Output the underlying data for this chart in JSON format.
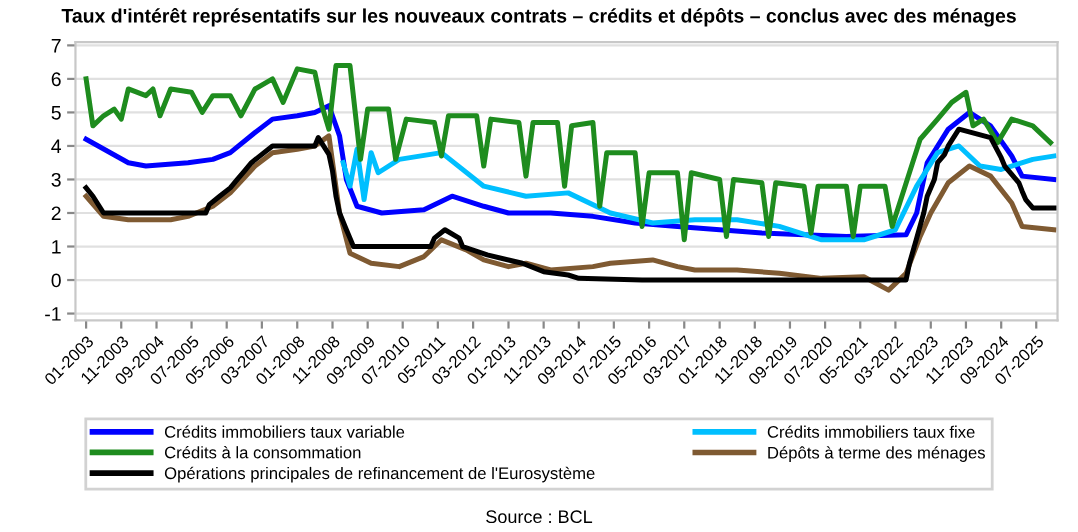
{
  "chart_data": {
    "type": "line",
    "title": "Taux d'intérêt représentatifs sur les nouveaux contrats – crédits et dépôts – conclus avec des ménages",
    "xlim": [
      "2002-10",
      "2026-01"
    ],
    "xticks": [
      {
        "value": "2003-01",
        "label": "01-2003"
      },
      {
        "value": "2003-11",
        "label": "11-2003"
      },
      {
        "value": "2004-09",
        "label": "09-2004"
      },
      {
        "value": "2005-07",
        "label": "07-2005"
      },
      {
        "value": "2006-05",
        "label": "05-2006"
      },
      {
        "value": "2007-03",
        "label": "03-2007"
      },
      {
        "value": "2008-01",
        "label": "01-2008"
      },
      {
        "value": "2008-11",
        "label": "11-2008"
      },
      {
        "value": "2009-09",
        "label": "09-2009"
      },
      {
        "value": "2010-07",
        "label": "07-2010"
      },
      {
        "value": "2011-05",
        "label": "05-2011"
      },
      {
        "value": "2012-03",
        "label": "03-2012"
      },
      {
        "value": "2013-01",
        "label": "01-2013"
      },
      {
        "value": "2013-11",
        "label": "11-2013"
      },
      {
        "value": "2014-09",
        "label": "09-2014"
      },
      {
        "value": "2015-07",
        "label": "07-2015"
      },
      {
        "value": "2016-05",
        "label": "05-2016"
      },
      {
        "value": "2017-03",
        "label": "03-2017"
      },
      {
        "value": "2018-01",
        "label": "01-2018"
      },
      {
        "value": "2018-11",
        "label": "11-2018"
      },
      {
        "value": "2019-09",
        "label": "09-2019"
      },
      {
        "value": "2020-07",
        "label": "07-2020"
      },
      {
        "value": "2021-05",
        "label": "05-2021"
      },
      {
        "value": "2022-03",
        "label": "03-2022"
      },
      {
        "value": "2023-01",
        "label": "01-2023"
      },
      {
        "value": "2023-11",
        "label": "11-2023"
      },
      {
        "value": "2024-09",
        "label": "09-2024"
      },
      {
        "value": "2025-07",
        "label": "07-2025"
      }
    ],
    "ylim": [
      -1.2,
      7.1
    ],
    "yticks": [
      -1,
      0,
      1,
      2,
      3,
      4,
      5,
      6,
      7
    ],
    "grid": "y",
    "legend": "bottom",
    "marker": "none",
    "line_style": "solid",
    "series": [
      {
        "name": "Crédits immobiliers taux variable",
        "color": "#0000ff",
        "x": [
          "2003-01",
          "2004-01",
          "2004-06",
          "2005-06",
          "2006-01",
          "2006-06",
          "2007-01",
          "2007-06",
          "2008-01",
          "2008-06",
          "2008-10",
          "2009-01",
          "2009-03",
          "2009-06",
          "2010-01",
          "2011-01",
          "2011-09",
          "2012-06",
          "2013-01",
          "2014-01",
          "2015-01",
          "2016-01",
          "2017-01",
          "2018-01",
          "2019-01",
          "2020-01",
          "2021-01",
          "2022-06",
          "2022-09",
          "2022-12",
          "2023-06",
          "2023-12",
          "2024-06",
          "2024-12",
          "2025-03",
          "2025-12"
        ],
        "values": [
          4.2,
          3.5,
          3.4,
          3.5,
          3.6,
          3.8,
          4.4,
          4.8,
          4.9,
          5.0,
          5.2,
          4.3,
          3.0,
          2.2,
          2.0,
          2.1,
          2.5,
          2.2,
          2.0,
          2.0,
          1.9,
          1.7,
          1.6,
          1.5,
          1.4,
          1.35,
          1.3,
          1.35,
          2.0,
          3.5,
          4.5,
          5.0,
          4.6,
          3.7,
          3.1,
          3.0
        ]
      },
      {
        "name": "Crédits immobiliers taux fixe",
        "color": "#00bfff",
        "x": [
          "2009-02",
          "2009-04",
          "2009-06",
          "2009-08",
          "2009-10",
          "2009-12",
          "2010-06",
          "2011-06",
          "2012-06",
          "2013-06",
          "2014-06",
          "2015-06",
          "2016-06",
          "2017-06",
          "2018-06",
          "2019-06",
          "2020-06",
          "2021-06",
          "2022-03",
          "2022-09",
          "2023-03",
          "2023-09",
          "2024-03",
          "2024-09",
          "2025-06",
          "2025-12"
        ],
        "values": [
          3.5,
          2.8,
          3.9,
          2.4,
          3.8,
          3.2,
          3.6,
          3.8,
          2.8,
          2.5,
          2.6,
          2.0,
          1.7,
          1.8,
          1.8,
          1.6,
          1.2,
          1.2,
          1.5,
          2.8,
          3.8,
          4.0,
          3.4,
          3.3,
          3.6,
          3.7
        ]
      },
      {
        "name": "Crédits à la consommation",
        "color": "#1e8c1e",
        "x": [
          "2003-01",
          "2003-03",
          "2003-06",
          "2003-09",
          "2003-11",
          "2004-01",
          "2004-06",
          "2004-08",
          "2004-10",
          "2005-01",
          "2005-07",
          "2005-10",
          "2006-01",
          "2006-06",
          "2006-09",
          "2007-01",
          "2007-06",
          "2007-09",
          "2008-01",
          "2008-06",
          "2008-08",
          "2008-10",
          "2008-12",
          "2009-04",
          "2009-07",
          "2009-09",
          "2010-03",
          "2010-05",
          "2010-08",
          "2011-04",
          "2011-06",
          "2011-08",
          "2012-04",
          "2012-06",
          "2012-08",
          "2013-04",
          "2013-06",
          "2013-08",
          "2014-03",
          "2014-05",
          "2014-07",
          "2015-01",
          "2015-03",
          "2015-05",
          "2016-01",
          "2016-03",
          "2016-05",
          "2017-01",
          "2017-03",
          "2017-05",
          "2018-01",
          "2018-03",
          "2018-05",
          "2019-01",
          "2019-03",
          "2019-05",
          "2020-01",
          "2020-03",
          "2020-05",
          "2021-01",
          "2021-03",
          "2021-05",
          "2021-12",
          "2022-02",
          "2022-10",
          "2023-03",
          "2023-07",
          "2023-11",
          "2024-01",
          "2024-04",
          "2024-08",
          "2024-12",
          "2025-06",
          "2025-11"
        ],
        "values": [
          6.0,
          4.6,
          4.9,
          5.1,
          4.8,
          5.7,
          5.5,
          5.7,
          4.9,
          5.7,
          5.6,
          5.0,
          5.5,
          5.5,
          4.9,
          5.7,
          6.0,
          5.3,
          6.3,
          6.2,
          5.2,
          4.5,
          6.4,
          6.4,
          3.6,
          5.1,
          5.1,
          3.6,
          4.8,
          4.7,
          3.7,
          4.9,
          4.9,
          3.4,
          4.8,
          4.7,
          3.1,
          4.7,
          4.7,
          2.8,
          4.6,
          4.7,
          2.2,
          3.8,
          3.8,
          1.6,
          3.2,
          3.2,
          1.2,
          3.2,
          3.0,
          1.3,
          3.0,
          2.9,
          1.3,
          2.9,
          2.8,
          1.4,
          2.8,
          2.8,
          1.3,
          2.8,
          2.8,
          1.6,
          4.2,
          4.8,
          5.3,
          5.6,
          4.6,
          4.8,
          4.1,
          4.8,
          4.6,
          4.1
        ]
      },
      {
        "name": "Dépôts à terme des ménages",
        "color": "#7f5a32",
        "x": [
          "2003-01",
          "2003-06",
          "2004-01",
          "2005-01",
          "2005-06",
          "2006-01",
          "2006-06",
          "2007-01",
          "2007-06",
          "2008-01",
          "2008-06",
          "2008-10",
          "2009-01",
          "2009-04",
          "2009-10",
          "2010-06",
          "2011-01",
          "2011-06",
          "2012-01",
          "2012-06",
          "2013-01",
          "2013-06",
          "2014-01",
          "2015-01",
          "2015-06",
          "2016-06",
          "2017-01",
          "2017-06",
          "2018-06",
          "2019-06",
          "2020-06",
          "2021-06",
          "2022-01",
          "2022-06",
          "2022-10",
          "2023-01",
          "2023-06",
          "2023-12",
          "2024-06",
          "2024-12",
          "2025-03",
          "2025-12"
        ],
        "values": [
          2.5,
          1.9,
          1.8,
          1.8,
          1.9,
          2.2,
          2.6,
          3.4,
          3.8,
          3.9,
          4.0,
          4.3,
          2.0,
          0.8,
          0.5,
          0.4,
          0.7,
          1.2,
          0.9,
          0.6,
          0.4,
          0.5,
          0.3,
          0.4,
          0.5,
          0.6,
          0.4,
          0.3,
          0.3,
          0.2,
          0.05,
          0.1,
          -0.3,
          0.2,
          1.3,
          2.0,
          2.9,
          3.4,
          3.1,
          2.3,
          1.6,
          1.5
        ]
      },
      {
        "name": "Opérations principales de refinancement de l'Eurosystème",
        "color": "#000000",
        "x": [
          "2003-01",
          "2003-03",
          "2003-06",
          "2005-11",
          "2005-12",
          "2006-03",
          "2006-06",
          "2006-08",
          "2006-10",
          "2006-12",
          "2007-03",
          "2007-06",
          "2008-06",
          "2008-07",
          "2008-10",
          "2008-11",
          "2008-12",
          "2009-01",
          "2009-03",
          "2009-04",
          "2009-05",
          "2011-03",
          "2011-04",
          "2011-07",
          "2011-11",
          "2011-12",
          "2012-07",
          "2013-05",
          "2013-11",
          "2014-06",
          "2014-09",
          "2016-03",
          "2022-06",
          "2022-07",
          "2022-09",
          "2022-11",
          "2022-12",
          "2023-02",
          "2023-03",
          "2023-05",
          "2023-06",
          "2023-09",
          "2024-06",
          "2024-09",
          "2024-10",
          "2024-12",
          "2025-02",
          "2025-03",
          "2025-04",
          "2025-06",
          "2025-12"
        ],
        "values": [
          2.75,
          2.5,
          2.0,
          2.0,
          2.25,
          2.5,
          2.75,
          3.0,
          3.25,
          3.5,
          3.75,
          4.0,
          4.0,
          4.25,
          3.75,
          3.25,
          2.5,
          2.0,
          1.5,
          1.25,
          1.0,
          1.0,
          1.25,
          1.5,
          1.25,
          1.0,
          0.75,
          0.5,
          0.25,
          0.15,
          0.05,
          0,
          0,
          0.5,
          1.25,
          2.0,
          2.5,
          3.0,
          3.5,
          3.75,
          4.0,
          4.5,
          4.25,
          3.65,
          3.4,
          3.15,
          2.9,
          2.65,
          2.4,
          2.15,
          2.15
        ]
      }
    ],
    "annotations": [
      "Source : BCL"
    ]
  }
}
